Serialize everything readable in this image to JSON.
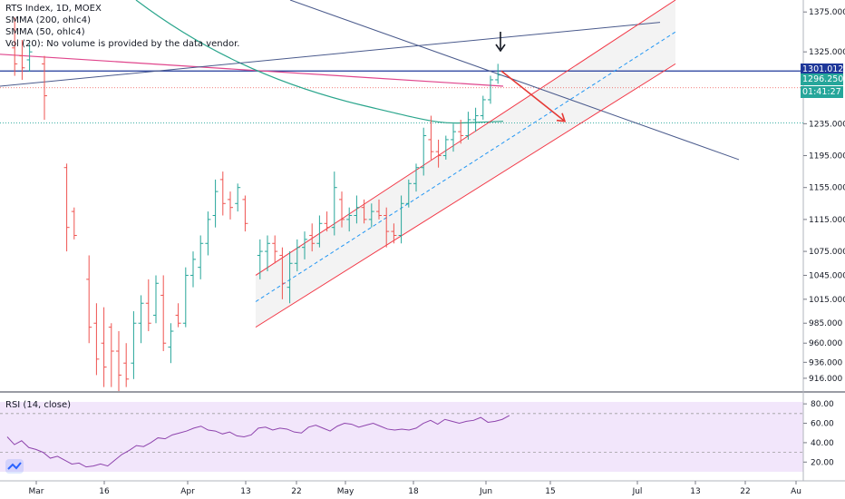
{
  "header": {
    "title": "RTS Index, 1D, MOEX",
    "indicators": [
      "SMMA (200, ohlc4)",
      "SMMA (50, ohlc4)",
      "Vol (20): No volume is provided by the data vendor."
    ]
  },
  "price_axis": {
    "ticks": [
      "1375.000",
      "1325.000",
      "1235.000",
      "1195.000",
      "1155.000",
      "1115.000",
      "1075.000",
      "1045.000",
      "1015.000",
      "985.000",
      "960.000",
      "936.000",
      "916.000"
    ],
    "tags": [
      {
        "label": "1301.012",
        "value": 1301.012,
        "color": "#1e3799"
      },
      {
        "label": "1296.250",
        "value": 1296.25,
        "color": "#26a69a"
      },
      {
        "label": "01:41:27",
        "value": 1280,
        "color": "#26a69a"
      }
    ]
  },
  "rsi_panel": {
    "title": "RSI (14, close)",
    "ticks": [
      "80.00",
      "60.00",
      "40.00",
      "20.00"
    ],
    "upper_band": 70,
    "lower_band": 30
  },
  "time_axis": {
    "labels": [
      "Mar",
      "16",
      "Apr",
      "13",
      "22",
      "May",
      "18",
      "Jun",
      "15",
      "Jul",
      "13",
      "22",
      "Au"
    ]
  },
  "colors": {
    "up": "#26a69a",
    "down": "#ef5350",
    "channel": "#f23645",
    "trend": "#4a5a8c",
    "smma200": "#e0458c",
    "smma50": "#2aa58c",
    "rsi": "#8e44ad"
  },
  "chart_data": {
    "type": "ohlc",
    "symbol": "RTS Index",
    "timeframe": "1D",
    "exchange": "MOEX",
    "y_range": [
      900,
      1390
    ],
    "rsi_range": [
      10,
      82
    ],
    "bars": [
      [
        1,
        1330,
        1368,
        1295,
        1310
      ],
      [
        2,
        1320,
        1340,
        1290,
        1305
      ],
      [
        3,
        1315,
        1335,
        1300,
        1325
      ],
      [
        5,
        1310,
        1320,
        1240,
        1270
      ],
      [
        8,
        1180,
        1185,
        1075,
        1105
      ],
      [
        9,
        1125,
        1130,
        1090,
        1095
      ],
      [
        11,
        1040,
        1070,
        960,
        980
      ],
      [
        12,
        985,
        1010,
        920,
        940
      ],
      [
        13,
        960,
        1005,
        905,
        930
      ],
      [
        14,
        980,
        985,
        905,
        950
      ],
      [
        15,
        950,
        975,
        900,
        920
      ],
      [
        16,
        935,
        960,
        905,
        915
      ],
      [
        17,
        935,
        1000,
        915,
        985
      ],
      [
        18,
        985,
        1020,
        960,
        1010
      ],
      [
        19,
        1010,
        1040,
        975,
        985
      ],
      [
        20,
        995,
        1045,
        985,
        1035
      ],
      [
        21,
        1020,
        1045,
        950,
        960
      ],
      [
        22,
        955,
        985,
        935,
        975
      ],
      [
        23,
        995,
        1010,
        980,
        985
      ],
      [
        24,
        985,
        1055,
        980,
        1045
      ],
      [
        25,
        1045,
        1075,
        1030,
        1065
      ],
      [
        26,
        1055,
        1095,
        1040,
        1085
      ],
      [
        27,
        1085,
        1125,
        1070,
        1115
      ],
      [
        28,
        1120,
        1165,
        1105,
        1150
      ],
      [
        29,
        1165,
        1175,
        1120,
        1135
      ],
      [
        30,
        1140,
        1150,
        1115,
        1130
      ],
      [
        31,
        1135,
        1160,
        1125,
        1155
      ],
      [
        32,
        1140,
        1145,
        1100,
        1110
      ],
      [
        34,
        1070,
        1090,
        1040,
        1075
      ],
      [
        35,
        1075,
        1095,
        1050,
        1085
      ],
      [
        36,
        1085,
        1095,
        1060,
        1075
      ],
      [
        37,
        1070,
        1080,
        1015,
        1035
      ],
      [
        38,
        1030,
        1075,
        1010,
        1060
      ],
      [
        39,
        1060,
        1090,
        1050,
        1080
      ],
      [
        40,
        1080,
        1100,
        1065,
        1090
      ],
      [
        41,
        1095,
        1110,
        1075,
        1085
      ],
      [
        42,
        1085,
        1120,
        1080,
        1110
      ],
      [
        43,
        1110,
        1125,
        1100,
        1105
      ],
      [
        44,
        1105,
        1175,
        1095,
        1155
      ],
      [
        45,
        1140,
        1150,
        1105,
        1115
      ],
      [
        46,
        1115,
        1130,
        1100,
        1120
      ],
      [
        47,
        1120,
        1145,
        1110,
        1130
      ],
      [
        48,
        1130,
        1140,
        1110,
        1115
      ],
      [
        49,
        1115,
        1135,
        1105,
        1125
      ],
      [
        50,
        1125,
        1140,
        1115,
        1120
      ],
      [
        51,
        1120,
        1130,
        1080,
        1100
      ],
      [
        52,
        1100,
        1110,
        1085,
        1095
      ],
      [
        53,
        1095,
        1145,
        1085,
        1135
      ],
      [
        54,
        1135,
        1165,
        1130,
        1160
      ],
      [
        55,
        1160,
        1185,
        1150,
        1180
      ],
      [
        56,
        1180,
        1230,
        1170,
        1220
      ],
      [
        57,
        1215,
        1245,
        1190,
        1200
      ],
      [
        58,
        1200,
        1215,
        1180,
        1195
      ],
      [
        59,
        1195,
        1220,
        1190,
        1215
      ],
      [
        60,
        1215,
        1235,
        1200,
        1225
      ],
      [
        61,
        1225,
        1240,
        1210,
        1220
      ],
      [
        62,
        1220,
        1250,
        1215,
        1240
      ],
      [
        63,
        1240,
        1255,
        1225,
        1245
      ],
      [
        64,
        1245,
        1270,
        1240,
        1265
      ],
      [
        65,
        1265,
        1295,
        1260,
        1290
      ],
      [
        66,
        1290,
        1310,
        1285,
        1296
      ]
    ],
    "rsi": [
      [
        0,
        46
      ],
      [
        2,
        38
      ],
      [
        4,
        42
      ],
      [
        6,
        35
      ],
      [
        8,
        33
      ],
      [
        10,
        30
      ],
      [
        12,
        24
      ],
      [
        14,
        26
      ],
      [
        16,
        22
      ],
      [
        18,
        18
      ],
      [
        20,
        19
      ],
      [
        22,
        15
      ],
      [
        24,
        16
      ],
      [
        26,
        18
      ],
      [
        28,
        16
      ],
      [
        30,
        22
      ],
      [
        32,
        28
      ],
      [
        34,
        32
      ],
      [
        36,
        37
      ],
      [
        38,
        36
      ],
      [
        40,
        40
      ],
      [
        42,
        45
      ],
      [
        44,
        44
      ],
      [
        46,
        48
      ],
      [
        48,
        50
      ],
      [
        50,
        52
      ],
      [
        52,
        55
      ],
      [
        54,
        57
      ],
      [
        56,
        53
      ],
      [
        58,
        52
      ],
      [
        60,
        49
      ],
      [
        62,
        51
      ],
      [
        64,
        47
      ],
      [
        66,
        46
      ],
      [
        68,
        48
      ],
      [
        70,
        55
      ],
      [
        72,
        56
      ],
      [
        74,
        53
      ],
      [
        76,
        55
      ],
      [
        78,
        54
      ],
      [
        80,
        51
      ],
      [
        82,
        50
      ],
      [
        84,
        56
      ],
      [
        86,
        58
      ],
      [
        88,
        55
      ],
      [
        90,
        52
      ],
      [
        92,
        57
      ],
      [
        94,
        60
      ],
      [
        96,
        59
      ],
      [
        98,
        56
      ],
      [
        100,
        58
      ],
      [
        102,
        60
      ],
      [
        104,
        57
      ],
      [
        106,
        54
      ],
      [
        108,
        53
      ],
      [
        110,
        54
      ],
      [
        112,
        53
      ],
      [
        114,
        55
      ],
      [
        116,
        60
      ],
      [
        118,
        63
      ],
      [
        120,
        59
      ],
      [
        122,
        64
      ],
      [
        124,
        62
      ],
      [
        126,
        60
      ],
      [
        128,
        62
      ],
      [
        130,
        63
      ],
      [
        132,
        66
      ],
      [
        134,
        61
      ],
      [
        136,
        62
      ],
      [
        138,
        64
      ],
      [
        140,
        68
      ]
    ]
  }
}
